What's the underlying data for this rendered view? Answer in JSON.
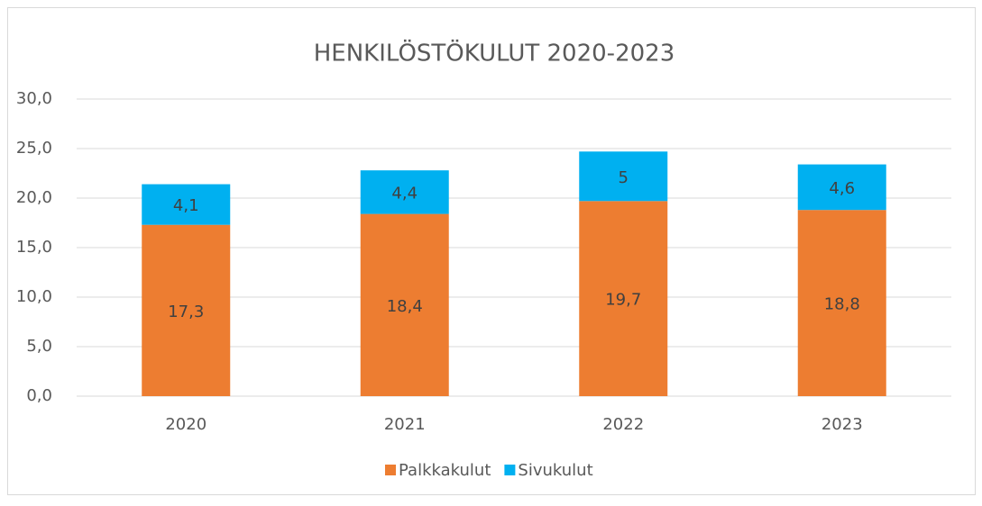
{
  "chart_data": {
    "type": "stacked_bar",
    "title": "HENKILÖSTÖKULUT 2020-2023",
    "categories": [
      "2020",
      "2021",
      "2022",
      "2023"
    ],
    "series": [
      {
        "name": "Palkkakulut",
        "color": "#ed7d31",
        "values": [
          17.3,
          18.4,
          19.7,
          18.8
        ],
        "value_labels": [
          "17,3",
          "18,4",
          "19,7",
          "18,8"
        ]
      },
      {
        "name": "Sivukulut",
        "color": "#00b0f0",
        "values": [
          4.1,
          4.4,
          5,
          4.6
        ],
        "value_labels": [
          "4,1",
          "4,4",
          "5",
          "4,6"
        ]
      }
    ],
    "ylim": [
      0,
      30
    ],
    "yticks": [
      {
        "value": 0,
        "label": "0,0"
      },
      {
        "value": 5,
        "label": "5,0"
      },
      {
        "value": 10,
        "label": "10,0"
      },
      {
        "value": 15,
        "label": "15,0"
      },
      {
        "value": 20,
        "label": "20,0"
      },
      {
        "value": 25,
        "label": "25,0"
      },
      {
        "value": 30,
        "label": "30,0"
      }
    ],
    "grid": true,
    "legend": "bottom"
  }
}
